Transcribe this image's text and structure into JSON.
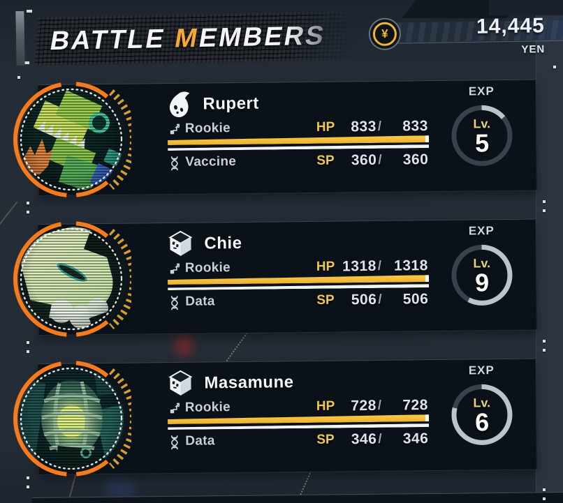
{
  "header": {
    "title_word": "BATTLE",
    "title_accent": "M",
    "title_rest": "EMBERS",
    "currency_symbol": "¥",
    "currency_amount": "14,445",
    "currency_unit": "YEN"
  },
  "stats_labels": {
    "hp": "HP",
    "sp": "SP",
    "exp": "EXP",
    "level": "Lv.",
    "sep": "/"
  },
  "members": [
    {
      "name": "Rupert",
      "species_icon": "droplet-face-icon",
      "stage": "Rookie",
      "attribute": "Vaccine",
      "hp_current": "833",
      "hp_max": "833",
      "sp_current": "360",
      "sp_max": "360",
      "level": "5",
      "exp_percent": 14,
      "hp_percent": 100,
      "sp_percent": 100
    },
    {
      "name": "Chie",
      "species_icon": "cube-face-icon",
      "stage": "Rookie",
      "attribute": "Data",
      "hp_current": "1318",
      "hp_max": "1318",
      "sp_current": "506",
      "sp_max": "506",
      "level": "9",
      "exp_percent": 58,
      "hp_percent": 100,
      "sp_percent": 100
    },
    {
      "name": "Masamune",
      "species_icon": "cube-face-icon",
      "stage": "Rookie",
      "attribute": "Data",
      "hp_current": "728",
      "hp_max": "728",
      "sp_current": "346",
      "sp_max": "346",
      "level": "6",
      "exp_percent": 79,
      "hp_percent": 100,
      "sp_percent": 100
    }
  ],
  "colors": {
    "accent_orange": "#f57b1d",
    "hp_yellow": "#f2bd3a",
    "label_yellow": "#eec84f",
    "exp_progress": "#b9c5cd",
    "exp_track": "#39424c",
    "tick_gold": "#d39f2c"
  }
}
